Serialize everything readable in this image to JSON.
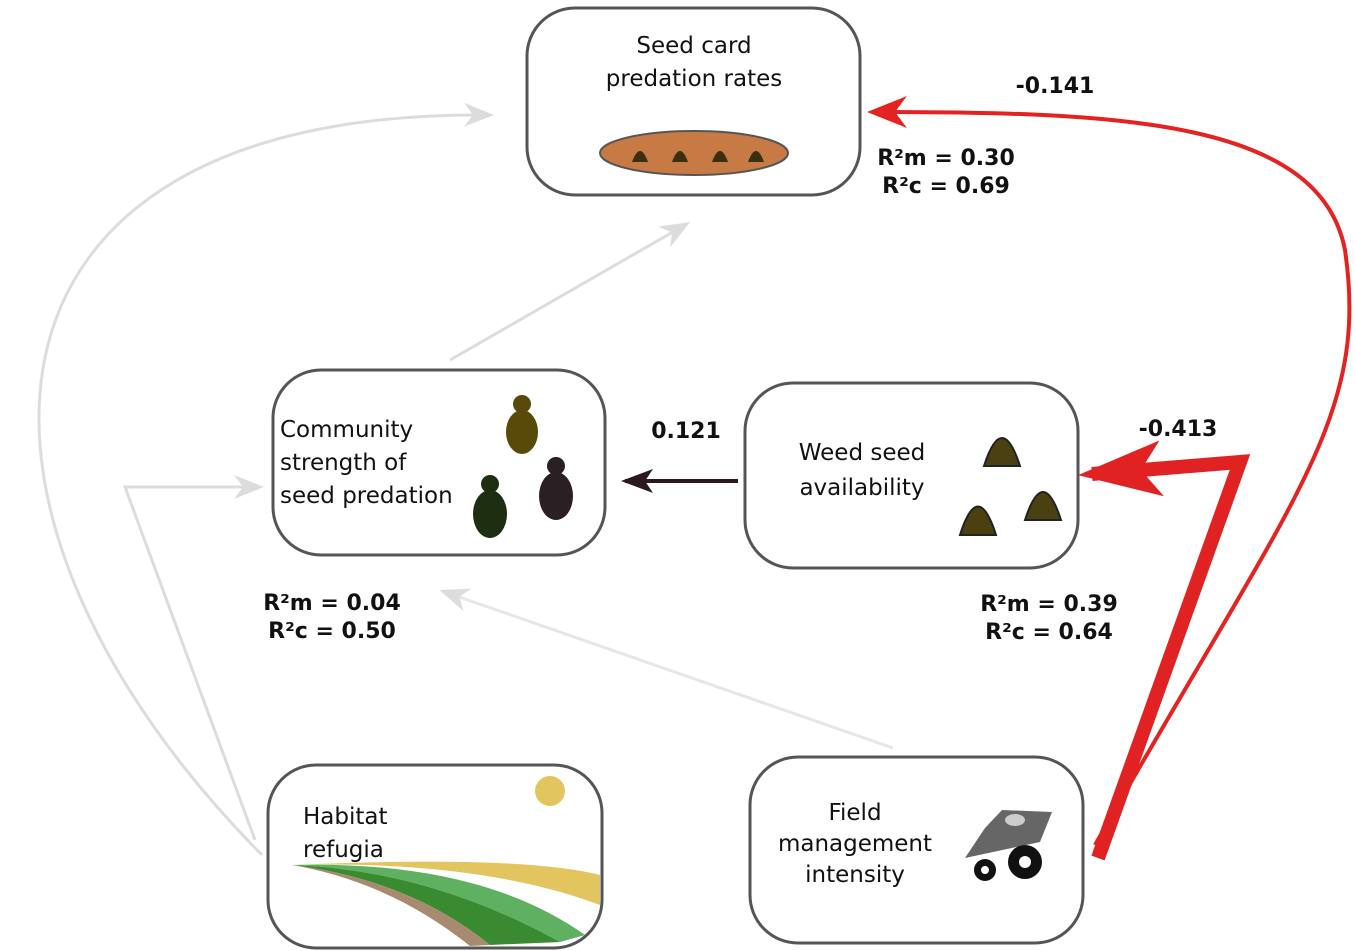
{
  "nodes": [
    {
      "label_lines": [
        "Seed card",
        "predation rates"
      ]
    },
    {
      "label_lines": [
        "Community",
        "strength of",
        "seed predation"
      ]
    },
    {
      "label_lines": [
        "Weed seed",
        "availability"
      ]
    },
    {
      "label_lines": [
        "Habitat",
        "refugia"
      ]
    },
    {
      "label_lines": [
        "Field",
        "management",
        "intensity"
      ]
    }
  ],
  "edge_labels": [
    "-0.141",
    "0.121",
    "-0.413"
  ],
  "stats": [
    [
      "R²m = 0.30",
      "R²c = 0.69"
    ],
    [
      "R²m = 0.04",
      "R²c = 0.50"
    ],
    [
      "R²m = 0.39",
      "R²c = 0.64"
    ]
  ]
}
